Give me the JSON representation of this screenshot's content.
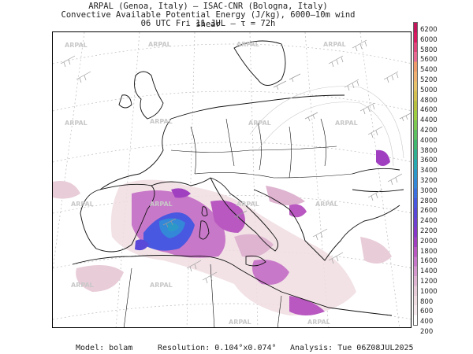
{
  "header": {
    "line1": "ARPAL (Genoa, Italy)  —  ISAC-CNR (Bologna, Italy)",
    "line2": "Convective Available Potential Energy (J/kg), 6000–10m wind shear",
    "line3": "06 UTC Fri 11 JUL  —  τ = 72h"
  },
  "watermark": "ARPAL",
  "colorbar": {
    "labels": [
      "6200",
      "6000",
      "5800",
      "5600",
      "5400",
      "5200",
      "5000",
      "4800",
      "4600",
      "4400",
      "4200",
      "4000",
      "3800",
      "3600",
      "3400",
      "3200",
      "3000",
      "2800",
      "2600",
      "2400",
      "2200",
      "2000",
      "1800",
      "1600",
      "1400",
      "1200",
      "1000",
      "800",
      "600",
      "400",
      "200"
    ],
    "colors": [
      "#c2185b",
      "#d81b60",
      "#e0457b",
      "#e86a93",
      "#ee9a6a",
      "#f0b070",
      "#e8c26a",
      "#d4c050",
      "#b8c040",
      "#9ccd40",
      "#7dc850",
      "#5cc060",
      "#40b870",
      "#30b090",
      "#28a8b0",
      "#2c98c8",
      "#3488d8",
      "#3c70e0",
      "#4858e0",
      "#5a48d8",
      "#7040d0",
      "#8838c8",
      "#a040c0",
      "#b858c0",
      "#c878c8",
      "#d498cc",
      "#deb4d0",
      "#e8ccd8",
      "#f0dde2",
      "#f6eaee",
      "#ffffff"
    ]
  },
  "footer": {
    "model_label": "Model:",
    "model_value": "bolam",
    "resolution_label": "Resolution:",
    "resolution_value": "0.104°x0.074°",
    "analysis_label": "Analysis:",
    "analysis_value": "Tue 06Z08JUL2025"
  }
}
